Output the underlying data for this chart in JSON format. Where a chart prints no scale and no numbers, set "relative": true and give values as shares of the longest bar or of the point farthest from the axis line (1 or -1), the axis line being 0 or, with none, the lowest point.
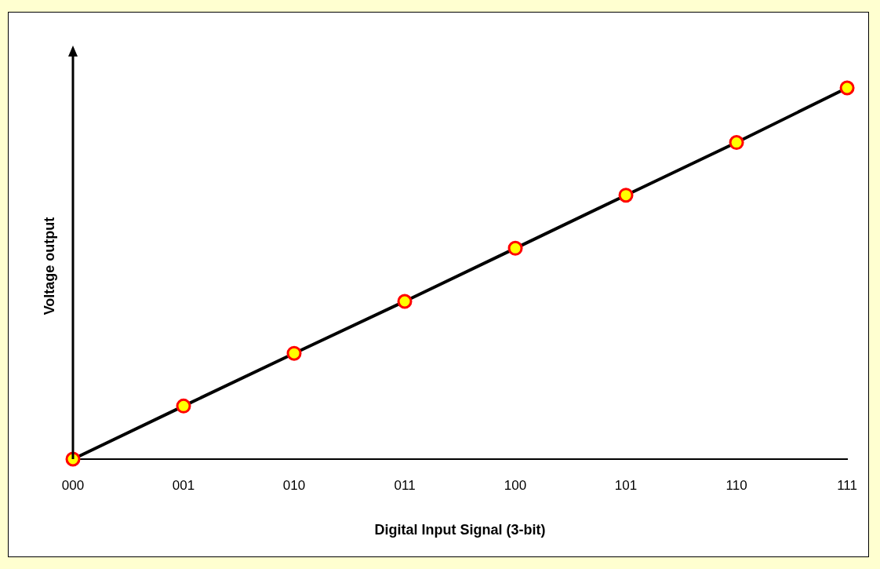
{
  "chart_data": {
    "type": "line",
    "xlabel": "Digital Input Signal (3-bit)",
    "ylabel": "Voltage output",
    "categories": [
      "000",
      "001",
      "010",
      "011",
      "100",
      "101",
      "110",
      "111"
    ],
    "relative": true,
    "marker": "circle",
    "legend": false,
    "grid": false,
    "series": [
      {
        "color": "#000000",
        "values": [
          0,
          0.143,
          0.285,
          0.425,
          0.568,
          0.711,
          0.853,
          1
        ]
      }
    ]
  }
}
